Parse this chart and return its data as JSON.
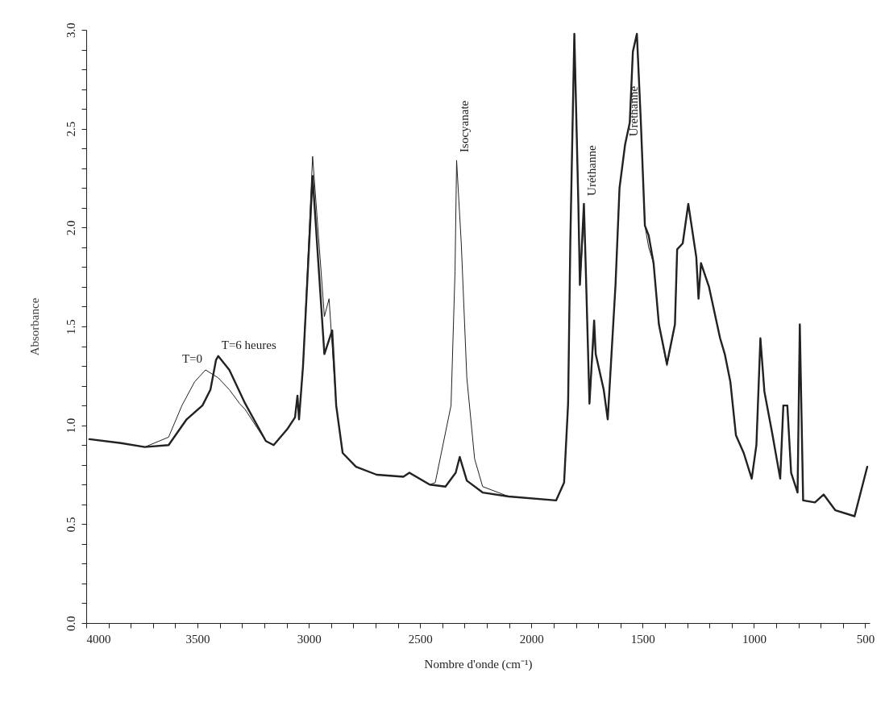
{
  "chart_data": {
    "type": "line",
    "xlabel": "Nombre d'onde (cm⁻¹)",
    "ylabel": "Absorbance",
    "xlim": [
      4000,
      480
    ],
    "ylim": [
      0,
      3
    ],
    "line_style": "solid",
    "xticks": [
      4000,
      {
        "value": 3900,
        "label": null
      },
      {
        "value": 3800,
        "label": null
      },
      {
        "value": 3700,
        "label": null
      },
      {
        "value": 3600,
        "label": null
      },
      3500,
      {
        "value": 3400,
        "label": null
      },
      {
        "value": 3300,
        "label": null
      },
      {
        "value": 3200,
        "label": null
      },
      {
        "value": 3100,
        "label": null
      },
      3000,
      {
        "value": 2900,
        "label": null
      },
      {
        "value": 2800,
        "label": null
      },
      {
        "value": 2700,
        "label": null
      },
      {
        "value": 2600,
        "label": null
      },
      2500,
      {
        "value": 2400,
        "label": null
      },
      {
        "value": 2300,
        "label": null
      },
      {
        "value": 2200,
        "label": null
      },
      {
        "value": 2100,
        "label": null
      },
      2000,
      {
        "value": 1900,
        "label": null
      },
      {
        "value": 1800,
        "label": null
      },
      {
        "value": 1700,
        "label": null
      },
      {
        "value": 1600,
        "label": null
      },
      1500,
      {
        "value": 1400,
        "label": null
      },
      {
        "value": 1300,
        "label": null
      },
      {
        "value": 1200,
        "label": null
      },
      {
        "value": 1100,
        "label": null
      },
      1000,
      {
        "value": 900,
        "label": null
      },
      {
        "value": 800,
        "label": null
      },
      {
        "value": 700,
        "label": null
      },
      {
        "value": 600,
        "label": null
      },
      500
    ],
    "yticks": [
      {
        "value": 0,
        "label": "0.0"
      },
      {
        "value": 0.1,
        "label": null
      },
      {
        "value": 0.2,
        "label": null
      },
      {
        "value": 0.3,
        "label": null
      },
      {
        "value": 0.4,
        "label": null
      },
      0.5,
      {
        "value": 0.6,
        "label": null
      },
      {
        "value": 0.7,
        "label": null
      },
      {
        "value": 0.8,
        "label": null
      },
      {
        "value": 0.9,
        "label": null
      },
      {
        "value": 1,
        "label": "1.0"
      },
      {
        "value": 1.1,
        "label": null
      },
      {
        "value": 1.2,
        "label": null
      },
      {
        "value": 1.3,
        "label": null
      },
      {
        "value": 1.4,
        "label": null
      },
      1.5,
      {
        "value": 1.6,
        "label": null
      },
      {
        "value": 1.7,
        "label": null
      },
      {
        "value": 1.8,
        "label": null
      },
      {
        "value": 1.9,
        "label": null
      },
      {
        "value": 2,
        "label": "2.0"
      },
      {
        "value": 2.1,
        "label": null
      },
      {
        "value": 2.2,
        "label": null
      },
      {
        "value": 2.3,
        "label": null
      },
      {
        "value": 2.4,
        "label": null
      },
      2.5,
      {
        "value": 2.6,
        "label": null
      },
      {
        "value": 2.7,
        "label": null
      },
      {
        "value": 2.8,
        "label": null
      },
      {
        "value": 2.9,
        "label": null
      },
      {
        "value": 3,
        "label": "3.0"
      }
    ],
    "series": [
      {
        "name": "T=0",
        "color": "#222222",
        "x": [
          3986,
          3844,
          3737,
          3630,
          3570,
          3513,
          3464,
          3407,
          3357,
          3311,
          3286,
          3193,
          3158,
          3097,
          3062,
          3051,
          3044,
          3026,
          2983,
          2930,
          2909,
          2877,
          2848,
          2788,
          2695,
          2575,
          2548,
          2457,
          2432,
          2361,
          2343,
          2336,
          2315,
          2290,
          2255,
          2219,
          2102,
          1889,
          1853,
          1835,
          1825,
          1807,
          1789,
          1782,
          1764,
          1757,
          1739,
          1718,
          1711,
          1675,
          1657,
          1622,
          1604,
          1579,
          1558,
          1544,
          1526,
          1508,
          1490,
          1473,
          1451,
          1427,
          1391,
          1355,
          1345,
          1320,
          1295,
          1259,
          1249,
          1238,
          1202,
          1152,
          1131,
          1106,
          1081,
          1046,
          1010,
          989,
          971,
          953,
          918,
          882,
          868,
          850,
          833,
          804,
          794,
          779,
          726,
          687,
          634,
          548,
          491
        ],
        "values": [
          0.93,
          0.91,
          0.89,
          0.94,
          1.1,
          1.22,
          1.28,
          1.24,
          1.18,
          1.11,
          1.08,
          0.92,
          0.9,
          0.98,
          1.04,
          1.15,
          1.03,
          1.3,
          2.36,
          1.55,
          1.64,
          1.1,
          0.86,
          0.79,
          0.75,
          0.74,
          0.76,
          0.7,
          0.71,
          1.1,
          1.78,
          2.34,
          1.92,
          1.24,
          0.83,
          0.69,
          0.64,
          0.62,
          0.71,
          1.11,
          1.93,
          2.98,
          2.12,
          1.71,
          2.05,
          1.85,
          1.11,
          1.48,
          1.36,
          1.18,
          1.03,
          1.71,
          2.2,
          2.42,
          2.53,
          2.89,
          2.98,
          2.53,
          2.01,
          1.9,
          1.82,
          1.51,
          1.3,
          1.51,
          1.89,
          1.92,
          2.12,
          1.85,
          1.64,
          1.82,
          1.7,
          1.44,
          1.36,
          1.22,
          0.95,
          0.86,
          0.73,
          0.9,
          1.44,
          1.17,
          0.96,
          0.73,
          1.1,
          1.1,
          0.76,
          0.66,
          1.51,
          0.62,
          0.61,
          0.65,
          0.57,
          0.54,
          0.79
        ]
      },
      {
        "name": "T=6 heures",
        "color": "#222222",
        "x": [
          3986,
          3844,
          3737,
          3630,
          3549,
          3478,
          3442,
          3417,
          3407,
          3357,
          3286,
          3193,
          3158,
          3097,
          3062,
          3051,
          3044,
          3026,
          2983,
          2930,
          2895,
          2877,
          2848,
          2788,
          2695,
          2575,
          2548,
          2457,
          2386,
          2340,
          2322,
          2290,
          2219,
          2102,
          1889,
          1853,
          1835,
          1825,
          1807,
          1789,
          1782,
          1764,
          1757,
          1739,
          1718,
          1711,
          1675,
          1657,
          1622,
          1604,
          1579,
          1558,
          1544,
          1526,
          1508,
          1490,
          1473,
          1451,
          1427,
          1391,
          1355,
          1345,
          1320,
          1295,
          1259,
          1249,
          1238,
          1202,
          1152,
          1131,
          1106,
          1081,
          1046,
          1010,
          989,
          971,
          953,
          918,
          882,
          868,
          850,
          833,
          804,
          794,
          779,
          726,
          687,
          634,
          548,
          491
        ],
        "values": [
          0.93,
          0.91,
          0.89,
          0.9,
          1.03,
          1.1,
          1.18,
          1.33,
          1.35,
          1.28,
          1.11,
          0.92,
          0.9,
          0.98,
          1.04,
          1.15,
          1.03,
          1.3,
          2.26,
          1.36,
          1.48,
          1.1,
          0.86,
          0.79,
          0.75,
          0.74,
          0.76,
          0.7,
          0.69,
          0.76,
          0.84,
          0.72,
          0.66,
          0.64,
          0.62,
          0.71,
          1.11,
          1.93,
          2.98,
          2.12,
          1.71,
          2.12,
          1.85,
          1.11,
          1.53,
          1.36,
          1.18,
          1.03,
          1.71,
          2.2,
          2.42,
          2.53,
          2.89,
          2.98,
          2.53,
          2.01,
          1.96,
          1.82,
          1.51,
          1.31,
          1.51,
          1.89,
          1.92,
          2.12,
          1.85,
          1.64,
          1.82,
          1.7,
          1.44,
          1.36,
          1.22,
          0.95,
          0.86,
          0.73,
          0.9,
          1.44,
          1.17,
          0.96,
          0.73,
          1.1,
          1.1,
          0.76,
          0.66,
          1.51,
          0.62,
          0.61,
          0.65,
          0.57,
          0.54,
          0.79
        ]
      }
    ],
    "annotations": [
      {
        "text": "Isocyanate",
        "x": 2336,
        "y": 2.34
      },
      {
        "text": "Uréthanne",
        "x": 1764,
        "y": 2.12
      },
      {
        "text": "Uréthanne",
        "x": 1579,
        "y": 2.42
      }
    ]
  }
}
